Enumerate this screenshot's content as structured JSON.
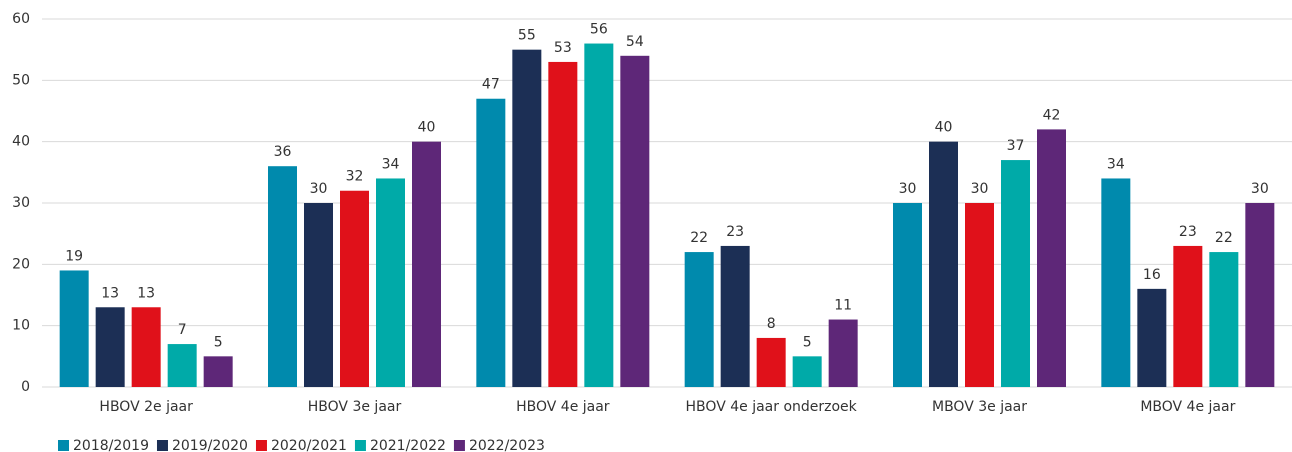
{
  "chart_data": {
    "type": "bar",
    "categories": [
      "HBOV 2e jaar",
      "HBOV 3e jaar",
      "HBOV 4e jaar",
      "HBOV 4e jaar onderzoek",
      "MBOV 3e jaar",
      "MBOV 4e jaar"
    ],
    "series": [
      {
        "name": "2018/2019",
        "color": "#008aad",
        "values": [
          19,
          36,
          47,
          22,
          30,
          34
        ]
      },
      {
        "name": "2019/2020",
        "color": "#1c2f55",
        "values": [
          13,
          30,
          55,
          23,
          40,
          16
        ]
      },
      {
        "name": "2020/2021",
        "color": "#e0111a",
        "values": [
          13,
          32,
          53,
          8,
          30,
          23
        ]
      },
      {
        "name": "2021/2022",
        "color": "#00aaa8",
        "values": [
          7,
          34,
          56,
          5,
          37,
          22
        ]
      },
      {
        "name": "2022/2023",
        "color": "#5e2778",
        "values": [
          5,
          40,
          54,
          11,
          42,
          30
        ]
      }
    ],
    "ylim": [
      0,
      60
    ],
    "yticks": [
      0,
      10,
      20,
      30,
      40,
      50,
      60
    ],
    "grid": true,
    "legend": "bottom"
  }
}
